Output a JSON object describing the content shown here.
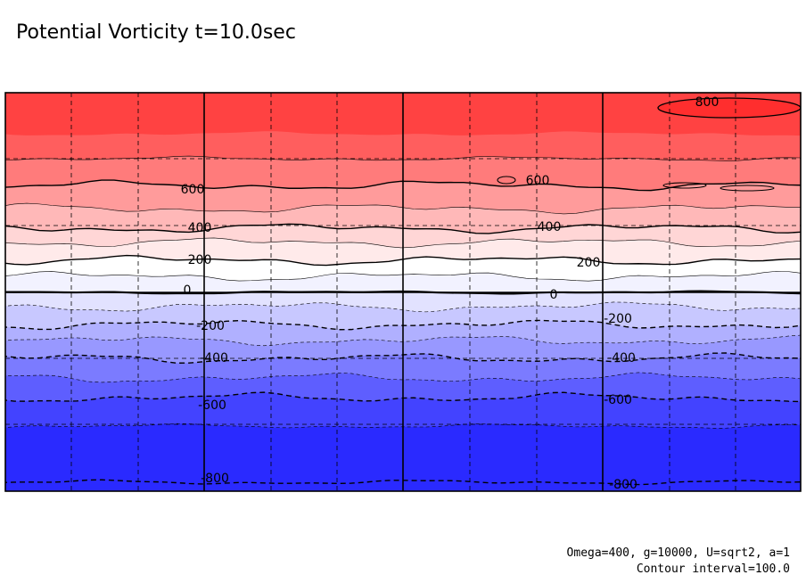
{
  "chart_data": {
    "type": "contour",
    "title": "Potential Vorticity t=10.0sec",
    "variable": "Potential Vorticity",
    "time": "t=10.0sec",
    "contour_interval": 100.0,
    "value_range": [
      -900,
      900
    ],
    "levels": [
      {
        "value": 800,
        "color": "#ff4242"
      },
      {
        "value": 700,
        "color": "#ff5e5e"
      },
      {
        "value": 600,
        "color": "#ff7b7b"
      },
      {
        "value": 500,
        "color": "#ff9b9b"
      },
      {
        "value": 400,
        "color": "#ffb8b8"
      },
      {
        "value": 300,
        "color": "#ffd6d6"
      },
      {
        "value": 200,
        "color": "#ffeaea"
      },
      {
        "value": 100,
        "color": "#ffffff"
      },
      {
        "value": 0,
        "color": "#f2f2ff"
      },
      {
        "value": -100,
        "color": "#e2e2ff"
      },
      {
        "value": -200,
        "color": "#c8c8ff"
      },
      {
        "value": -300,
        "color": "#b0b0ff"
      },
      {
        "value": -400,
        "color": "#9898ff"
      },
      {
        "value": -500,
        "color": "#7b7bff"
      },
      {
        "value": -600,
        "color": "#5e5eff"
      },
      {
        "value": -700,
        "color": "#4343ff"
      },
      {
        "value": -800,
        "color": "#2a2aff"
      }
    ],
    "labels": [
      "800",
      "600",
      "600",
      "400",
      "400",
      "200",
      "200",
      "0",
      "0",
      "-200",
      "-200",
      "-400",
      "-400",
      "-600",
      "-600",
      "-800",
      "-800"
    ],
    "contour_style": {
      "positive": "solid",
      "negative": "dashed"
    },
    "grid": "dashed"
  },
  "annotation": {
    "params": "Omega=400, g=10000, U=sqrt2, a=1",
    "interval": "Contour interval=100.0"
  }
}
